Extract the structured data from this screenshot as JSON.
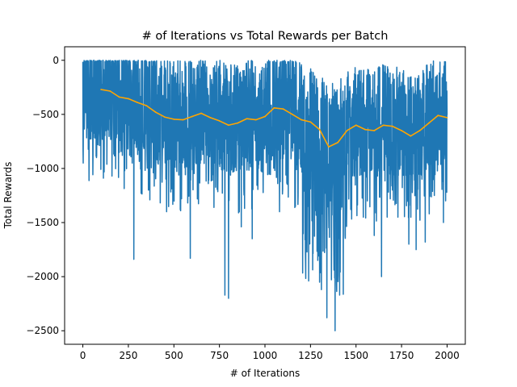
{
  "chart_data": {
    "type": "line",
    "title": "# of Iterations vs Total Rewards per Batch",
    "xlabel": "# of Iterations",
    "ylabel": "Total Rewards",
    "xlim": [
      -100,
      2100
    ],
    "ylim": [
      -2625,
      125
    ],
    "x_ticks": [
      0,
      250,
      500,
      750,
      1000,
      1250,
      1500,
      1750,
      2000
    ],
    "y_ticks": [
      0,
      -500,
      -1000,
      -1500,
      -2000,
      -2500
    ],
    "x_tick_labels": [
      "0",
      "250",
      "500",
      "750",
      "1000",
      "1250",
      "1500",
      "1750",
      "2000"
    ],
    "y_tick_labels": [
      "0",
      "−500",
      "−1000",
      "−1500",
      "−2000",
      "−2500"
    ],
    "grid": false,
    "series": [
      {
        "color": "#1f77b4",
        "x_range": [
          0,
          2000
        ],
        "points": 2001,
        "values_summary": {
          "max": 0,
          "min": -2500,
          "typical_high": -150,
          "typical_low": -900
        },
        "spikes": [
          [
            75,
            -900
          ],
          [
            160,
            -1070
          ],
          [
            280,
            -1840
          ],
          [
            320,
            -1230
          ],
          [
            360,
            -1200
          ],
          [
            460,
            -1400
          ],
          [
            590,
            -1830
          ],
          [
            720,
            -1360
          ],
          [
            780,
            -2170
          ],
          [
            800,
            -2200
          ],
          [
            870,
            -1540
          ],
          [
            930,
            -1650
          ],
          [
            1080,
            -1400
          ],
          [
            1240,
            -2040
          ],
          [
            1290,
            -1850
          ],
          [
            1310,
            -2120
          ],
          [
            1340,
            -2380
          ],
          [
            1385,
            -2500
          ],
          [
            1410,
            -2170
          ],
          [
            1440,
            -1620
          ],
          [
            1540,
            -1450
          ],
          [
            1600,
            -1620
          ],
          [
            1640,
            -2000
          ],
          [
            1700,
            -1200
          ],
          [
            1730,
            -1450
          ],
          [
            1790,
            -1700
          ],
          [
            1830,
            -1750
          ],
          [
            1880,
            -1680
          ],
          [
            1930,
            -1250
          ],
          [
            1980,
            -1500
          ]
        ]
      },
      {
        "color": "#ffa500",
        "x": [
          100,
          150,
          200,
          250,
          300,
          350,
          400,
          450,
          500,
          550,
          600,
          650,
          700,
          750,
          800,
          850,
          900,
          950,
          1000,
          1050,
          1100,
          1150,
          1200,
          1250,
          1300,
          1350,
          1400,
          1450,
          1500,
          1550,
          1600,
          1650,
          1700,
          1750,
          1800,
          1850,
          1900,
          1950,
          2000
        ],
        "values": [
          -270,
          -285,
          -340,
          -355,
          -390,
          -420,
          -480,
          -525,
          -545,
          -550,
          -520,
          -490,
          -530,
          -560,
          -600,
          -580,
          -540,
          -550,
          -520,
          -440,
          -450,
          -500,
          -550,
          -570,
          -640,
          -800,
          -760,
          -650,
          -600,
          -640,
          -650,
          -600,
          -610,
          -650,
          -700,
          -650,
          -580,
          -510,
          -530
        ]
      }
    ]
  }
}
